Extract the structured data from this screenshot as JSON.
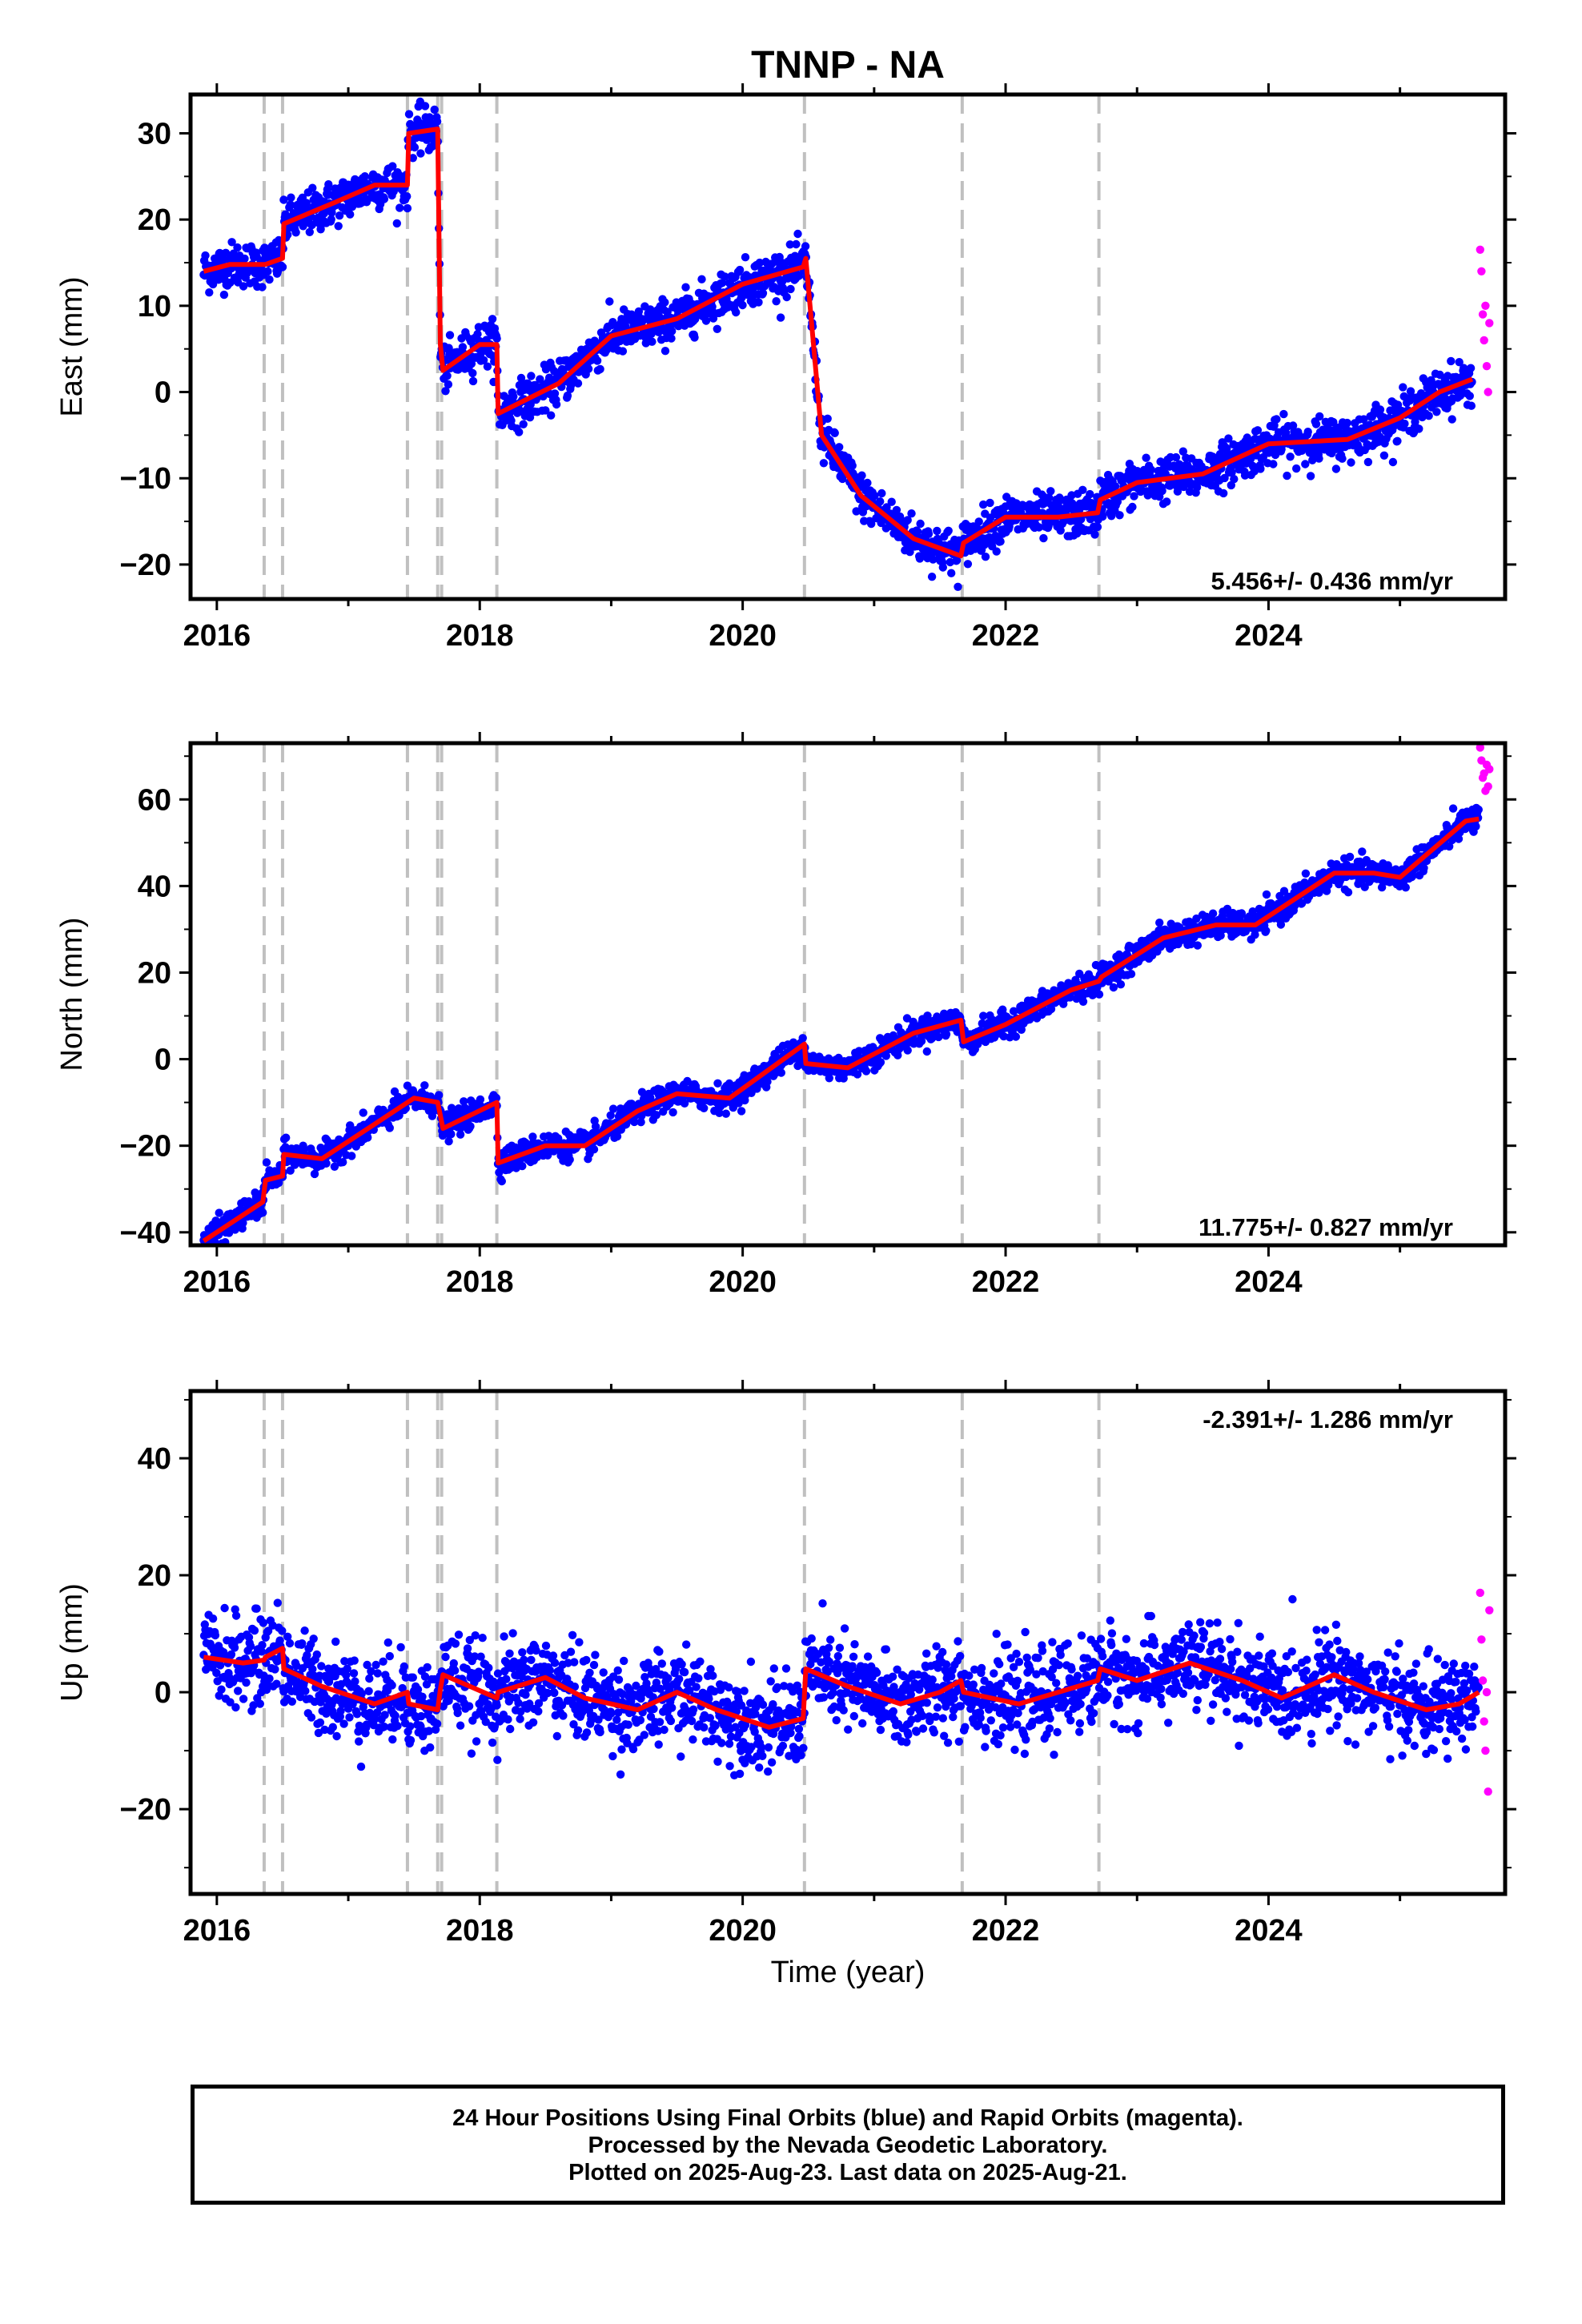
{
  "figure": {
    "title": "TNNP - NA",
    "xlabel": "Time (year)",
    "caption_lines": [
      "24 Hour Positions Using Final Orbits (blue) and Rapid Orbits (magenta).",
      "Processed by the Nevada Geodetic Laboratory.",
      "Plotted on 2025-Aug-23. Last data on 2025-Aug-21."
    ],
    "colors": {
      "final": "#0000ff",
      "rapid": "#ff00ff",
      "model": "#ff0000",
      "events": "#c0c0c0"
    }
  },
  "chart_data": [
    {
      "type": "scatter",
      "panel": "east",
      "ylabel": "East (mm)",
      "xlim": [
        2015.8,
        2025.8
      ],
      "ylim": [
        -24,
        34.5
      ],
      "x_ticks": [
        2016,
        2018,
        2020,
        2022,
        2024
      ],
      "y_ticks": [
        -20,
        -10,
        0,
        10,
        20,
        30
      ],
      "events": [
        2016.36,
        2016.5,
        2017.45,
        2017.68,
        2017.71,
        2018.13,
        2020.47,
        2021.67,
        2022.71
      ],
      "rate_label": "5.456+/- 0.436 mm/yr",
      "rate_position": "bottom-right",
      "final_orbit_series": {
        "name": "Final Orbits",
        "x": [
          2015.9,
          2016.1,
          2016.36,
          2016.37,
          2016.5,
          2016.51,
          2016.9,
          2017.2,
          2017.45,
          2017.46,
          2017.68,
          2017.7,
          2017.72,
          2018.0,
          2018.13,
          2018.14,
          2018.6,
          2019.0,
          2019.5,
          2020.0,
          2020.46,
          2020.48,
          2020.6,
          2020.9,
          2021.3,
          2021.66,
          2021.68,
          2022.0,
          2022.4,
          2022.7,
          2022.72,
          2023.0,
          2023.5,
          2024.0,
          2024.6,
          2025.0,
          2025.3,
          2025.55
        ],
        "y": [
          14,
          14.8,
          14.8,
          14.8,
          15.5,
          19.5,
          22,
          24,
          24,
          30,
          30.5,
          5.5,
          2.5,
          5.5,
          5.5,
          -2.5,
          1,
          6.5,
          8.5,
          12.5,
          14.5,
          15.5,
          -5,
          -12,
          -17,
          -19,
          -17.5,
          -14.5,
          -14.5,
          -14,
          -12.5,
          -10.5,
          -9.5,
          -6,
          -5.5,
          -3,
          0,
          1.5
        ]
      },
      "rapid_orbit_series": {
        "name": "Rapid Orbits",
        "x": [
          2025.61,
          2025.62,
          2025.63,
          2025.64,
          2025.65,
          2025.66,
          2025.67,
          2025.68
        ],
        "y": [
          16.5,
          14,
          9,
          6,
          10,
          3,
          0,
          8
        ]
      },
      "model_series": {
        "name": "Model",
        "x": [
          2015.9,
          2016.1,
          2016.36,
          2016.37,
          2016.5,
          2016.51,
          2016.9,
          2017.2,
          2017.45,
          2017.46,
          2017.68,
          2017.7,
          2017.72,
          2018.0,
          2018.13,
          2018.14,
          2018.6,
          2019.0,
          2019.5,
          2020.0,
          2020.46,
          2020.48,
          2020.6,
          2020.9,
          2021.3,
          2021.66,
          2021.68,
          2022.0,
          2022.4,
          2022.7,
          2022.72,
          2023.0,
          2023.5,
          2024.0,
          2024.6,
          2025.0,
          2025.3,
          2025.55
        ],
        "y": [
          14,
          14.8,
          14.8,
          14.8,
          15.5,
          19.5,
          22,
          24,
          24,
          30,
          30.5,
          5.5,
          2.5,
          5.5,
          5.5,
          -2.5,
          1,
          6.5,
          8.5,
          12.5,
          14.5,
          15.5,
          -5,
          -12,
          -17,
          -19,
          -17.5,
          -14.5,
          -14.5,
          -14,
          -12.5,
          -10.5,
          -9.5,
          -6,
          -5.5,
          -3,
          0,
          1.5
        ]
      }
    },
    {
      "type": "scatter",
      "panel": "north",
      "ylabel": "North (mm)",
      "xlim": [
        2015.8,
        2025.8
      ],
      "ylim": [
        -43,
        73
      ],
      "x_ticks": [
        2016,
        2018,
        2020,
        2022,
        2024
      ],
      "y_ticks": [
        -40,
        -20,
        0,
        20,
        40,
        60
      ],
      "events": [
        2016.36,
        2016.5,
        2017.45,
        2017.68,
        2017.71,
        2018.13,
        2020.47,
        2021.67,
        2022.71
      ],
      "rate_label": "11.775+/- 0.827 mm/yr",
      "rate_position": "bottom-right",
      "final_orbit_series": {
        "name": "Final Orbits",
        "x": [
          2015.9,
          2016.35,
          2016.37,
          2016.5,
          2016.51,
          2016.8,
          2017.2,
          2017.5,
          2017.68,
          2017.72,
          2018.13,
          2018.14,
          2018.5,
          2018.8,
          2019.2,
          2019.5,
          2019.9,
          2020.47,
          2020.48,
          2020.8,
          2021.3,
          2021.66,
          2021.68,
          2022.0,
          2022.5,
          2022.71,
          2022.73,
          2023.2,
          2023.6,
          2023.9,
          2024.5,
          2024.8,
          2025.0,
          2025.5,
          2025.6
        ],
        "y": [
          -42,
          -33,
          -28,
          -27,
          -22,
          -23,
          -15,
          -9,
          -10,
          -16,
          -10,
          -24,
          -20,
          -20,
          -12,
          -8,
          -9,
          3.5,
          -1,
          -2,
          6,
          9,
          4,
          8,
          16,
          18,
          19,
          28,
          31,
          31,
          43,
          43,
          42,
          55,
          55.5
        ]
      },
      "rapid_orbit_series": {
        "name": "Rapid Orbits",
        "x": [
          2025.61,
          2025.62,
          2025.63,
          2025.64,
          2025.65,
          2025.66,
          2025.67,
          2025.68
        ],
        "y": [
          72,
          69,
          65,
          66,
          62,
          68,
          63,
          67
        ]
      },
      "model_series": {
        "name": "Model",
        "x": [
          2015.9,
          2016.35,
          2016.37,
          2016.5,
          2016.51,
          2016.8,
          2017.2,
          2017.5,
          2017.68,
          2017.72,
          2018.13,
          2018.14,
          2018.5,
          2018.8,
          2019.2,
          2019.5,
          2019.9,
          2020.47,
          2020.48,
          2020.8,
          2021.3,
          2021.66,
          2021.68,
          2022.0,
          2022.5,
          2022.71,
          2022.73,
          2023.2,
          2023.6,
          2023.9,
          2024.5,
          2024.8,
          2025.0,
          2025.5,
          2025.6
        ],
        "y": [
          -42,
          -33,
          -28,
          -27,
          -22,
          -23,
          -15,
          -9,
          -10,
          -16,
          -10,
          -24,
          -20,
          -20,
          -12,
          -8,
          -9,
          3.5,
          -1,
          -2,
          6,
          9,
          4,
          8,
          16,
          18,
          19,
          28,
          31,
          31,
          43,
          43,
          42,
          55,
          55.5
        ]
      }
    },
    {
      "type": "scatter",
      "panel": "up",
      "ylabel": "Up (mm)",
      "xlim": [
        2015.8,
        2025.8
      ],
      "ylim": [
        -34.5,
        51.5
      ],
      "x_ticks": [
        2016,
        2018,
        2020,
        2022,
        2024
      ],
      "y_ticks": [
        -20,
        0,
        20,
        40
      ],
      "events": [
        2016.36,
        2016.5,
        2017.45,
        2017.68,
        2017.71,
        2018.13,
        2020.47,
        2021.67,
        2022.71
      ],
      "rate_label": "-2.391+/- 1.286 mm/yr",
      "rate_position": "top-right",
      "final_orbit_series": {
        "name": "Final Orbits",
        "x": [
          2015.9,
          2016.2,
          2016.36,
          2016.37,
          2016.5,
          2016.51,
          2016.8,
          2017.2,
          2017.45,
          2017.46,
          2017.68,
          2017.7,
          2017.72,
          2018.13,
          2018.14,
          2018.5,
          2018.8,
          2019.2,
          2019.5,
          2019.8,
          2020.2,
          2020.46,
          2020.48,
          2020.8,
          2021.2,
          2021.5,
          2021.66,
          2021.68,
          2022.1,
          2022.4,
          2022.7,
          2022.72,
          2023.0,
          2023.4,
          2023.8,
          2024.1,
          2024.5,
          2024.8,
          2025.2,
          2025.45,
          2025.6
        ],
        "y": [
          6,
          5,
          5.5,
          6,
          7.5,
          4,
          1,
          -2,
          0,
          -2,
          -3,
          0.5,
          3,
          -1,
          0,
          2.5,
          -1,
          -3,
          0,
          -3,
          -6,
          -4.5,
          4,
          1,
          -2,
          0,
          2,
          0,
          -2,
          0,
          2,
          4,
          2,
          5,
          2,
          -1,
          3,
          0,
          -3,
          -2,
          0
        ]
      },
      "rapid_orbit_series": {
        "name": "Rapid Orbits",
        "x": [
          2025.61,
          2025.62,
          2025.63,
          2025.64,
          2025.65,
          2025.66,
          2025.67,
          2025.68
        ],
        "y": [
          17,
          9,
          2,
          -5,
          -10,
          0,
          -17,
          14
        ]
      },
      "model_series": {
        "name": "Model",
        "x": [
          2015.9,
          2016.2,
          2016.36,
          2016.37,
          2016.5,
          2016.51,
          2016.8,
          2017.2,
          2017.45,
          2017.46,
          2017.68,
          2017.7,
          2017.72,
          2018.13,
          2018.14,
          2018.5,
          2018.8,
          2019.2,
          2019.5,
          2019.8,
          2020.2,
          2020.46,
          2020.48,
          2020.8,
          2021.2,
          2021.5,
          2021.66,
          2021.68,
          2022.1,
          2022.4,
          2022.7,
          2022.72,
          2023.0,
          2023.4,
          2023.8,
          2024.1,
          2024.5,
          2024.8,
          2025.2,
          2025.45,
          2025.6
        ],
        "y": [
          6,
          5,
          5.5,
          6,
          7.5,
          4,
          1,
          -2,
          0,
          -2,
          -3,
          0.5,
          3,
          -1,
          0,
          2.5,
          -1,
          -3,
          0,
          -3,
          -6,
          -4.5,
          4,
          1,
          -2,
          0,
          2,
          0,
          -2,
          0,
          2,
          4,
          2,
          5,
          2,
          -1,
          3,
          0,
          -3,
          -2,
          0
        ]
      }
    }
  ]
}
